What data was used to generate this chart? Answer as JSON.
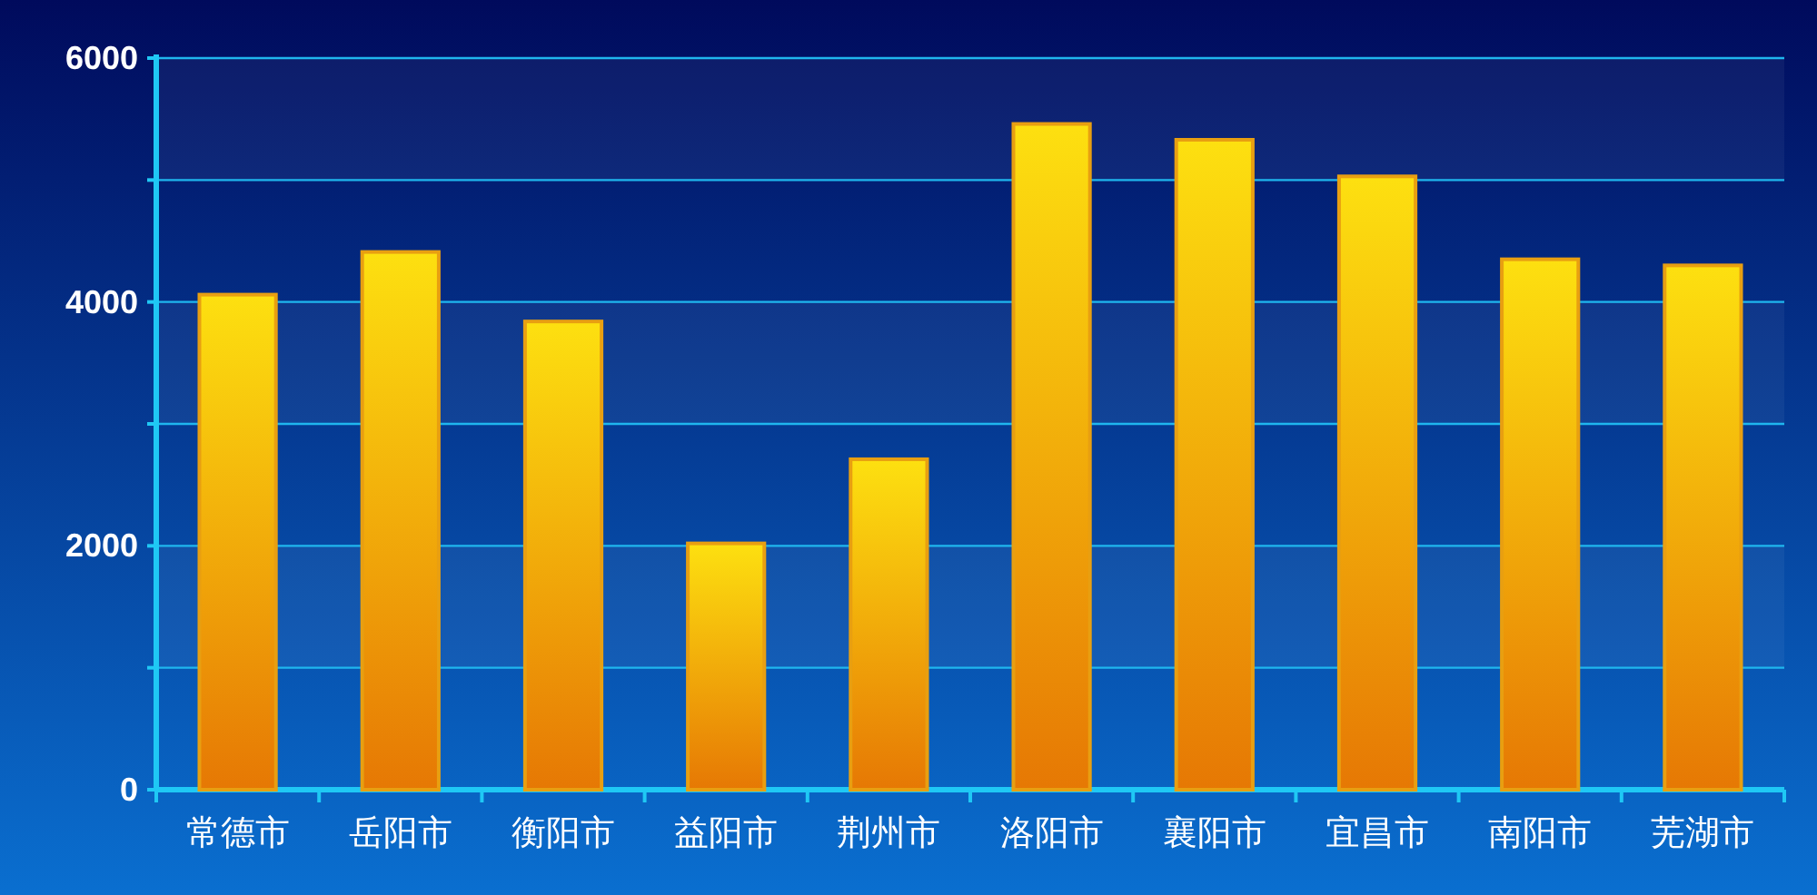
{
  "chart_data": {
    "type": "bar",
    "categories": [
      "常德市",
      "岳阳市",
      "衡阳市",
      "益阳市",
      "荆州市",
      "洛阳市",
      "襄阳市",
      "宜昌市",
      "南阳市",
      "芜湖市"
    ],
    "values": [
      4060,
      4410,
      3840,
      2020,
      2710,
      5460,
      5330,
      5030,
      4350,
      4300
    ],
    "color": "#f4a712",
    "ylim": [
      0,
      6000
    ],
    "yticks": [
      0,
      {
        "value": 1000,
        "label": null
      },
      2000,
      {
        "value": 3000,
        "label": null
      },
      4000,
      {
        "value": 5000,
        "label": null
      },
      6000
    ],
    "grid": "y"
  }
}
